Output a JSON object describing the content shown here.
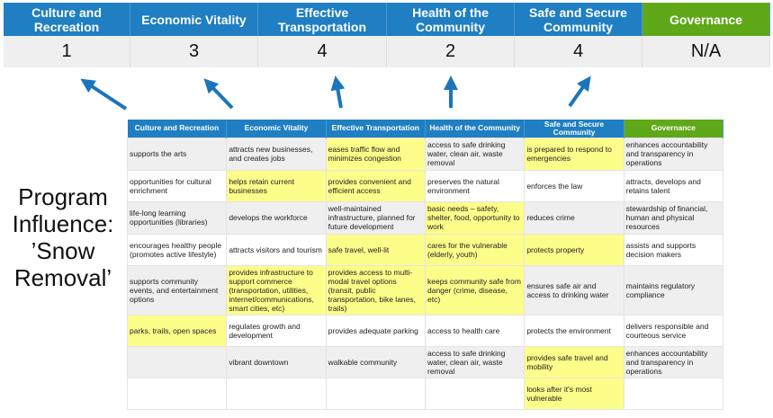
{
  "top": {
    "headers": [
      "Culture and Recreation",
      "Economic Vitality",
      "Effective Transportation",
      "Health of the Community",
      "Safe and Secure Community",
      "Governance"
    ],
    "scores": [
      "1",
      "3",
      "4",
      "2",
      "4",
      "N/A"
    ]
  },
  "label": "Program Influence: ’Snow Removal’",
  "colors": {
    "header_blue": "#1f7fc2",
    "governance_green": "#5fa81a",
    "highlight_yellow": "#fdfd8a",
    "arrow": "#1b75bb"
  },
  "table": {
    "headers": [
      "Culture and Recreation",
      "Economic Vitality",
      "Effective Transportation",
      "Health of the Community",
      "Safe and Secure Community",
      "Governance"
    ],
    "rows": [
      [
        "supports the arts",
        "attracts new businesses, and creates jobs",
        "eases traffic flow and minimizes congestion",
        "access to safe drinking water, clean air, waste removal",
        "is prepared to respond to emergencies",
        "enhances accountability and transparency in operations"
      ],
      [
        "opportunities for cultural enrichment",
        "helps retain current businesses",
        "provides convenient and efficient access",
        "preserves the natural environment",
        "enforces the law",
        "attracts, develops and retains talent"
      ],
      [
        "life-long learning opportunities (libraries)",
        "develops the workforce",
        "well-maintained infrastructure, planned for future development",
        "basic needs – safety, shelter, food, opportunity to work",
        "reduces crime",
        "stewardship of financial, human and physical resources"
      ],
      [
        "encourages healthy people (promotes active lifestyle)",
        "attracts visitors and tourism",
        "safe travel, well-lit",
        "cares for the vulnerable (elderly, youth)",
        "protects property",
        "assists and supports decision makers"
      ],
      [
        "supports community events, and entertainment options",
        "provides infrastructure to support commerce (transportation, utilities, internet/communications, smart cities, etc)",
        "provides access to multi-modal travel options (transit, public transportation, bike lanes, trails)",
        "keeps community safe from danger (crime, disease, etc)",
        "ensures safe air and access to drinking water",
        "maintains regulatory compliance"
      ],
      [
        "parks, trails, open spaces",
        "regulates growth and development",
        "provides adequate parking",
        "access to health care",
        "protects the environment",
        "delivers responsible and courteous service"
      ],
      [
        "",
        "vibrant downtown",
        "walkable community",
        "access to safe drinking water, clean air, waste removal",
        "provides safe travel and mobility",
        "enhances accountability and transparency in operations"
      ],
      [
        "",
        "",
        "",
        "",
        "looks after it's most vulnerable",
        ""
      ]
    ],
    "highlighted": [
      [
        2,
        4
      ],
      [
        1,
        2
      ],
      [
        3
      ],
      [
        2,
        3,
        4
      ],
      [
        1,
        2,
        3
      ],
      [
        0
      ],
      [
        4
      ],
      [
        4
      ]
    ]
  }
}
